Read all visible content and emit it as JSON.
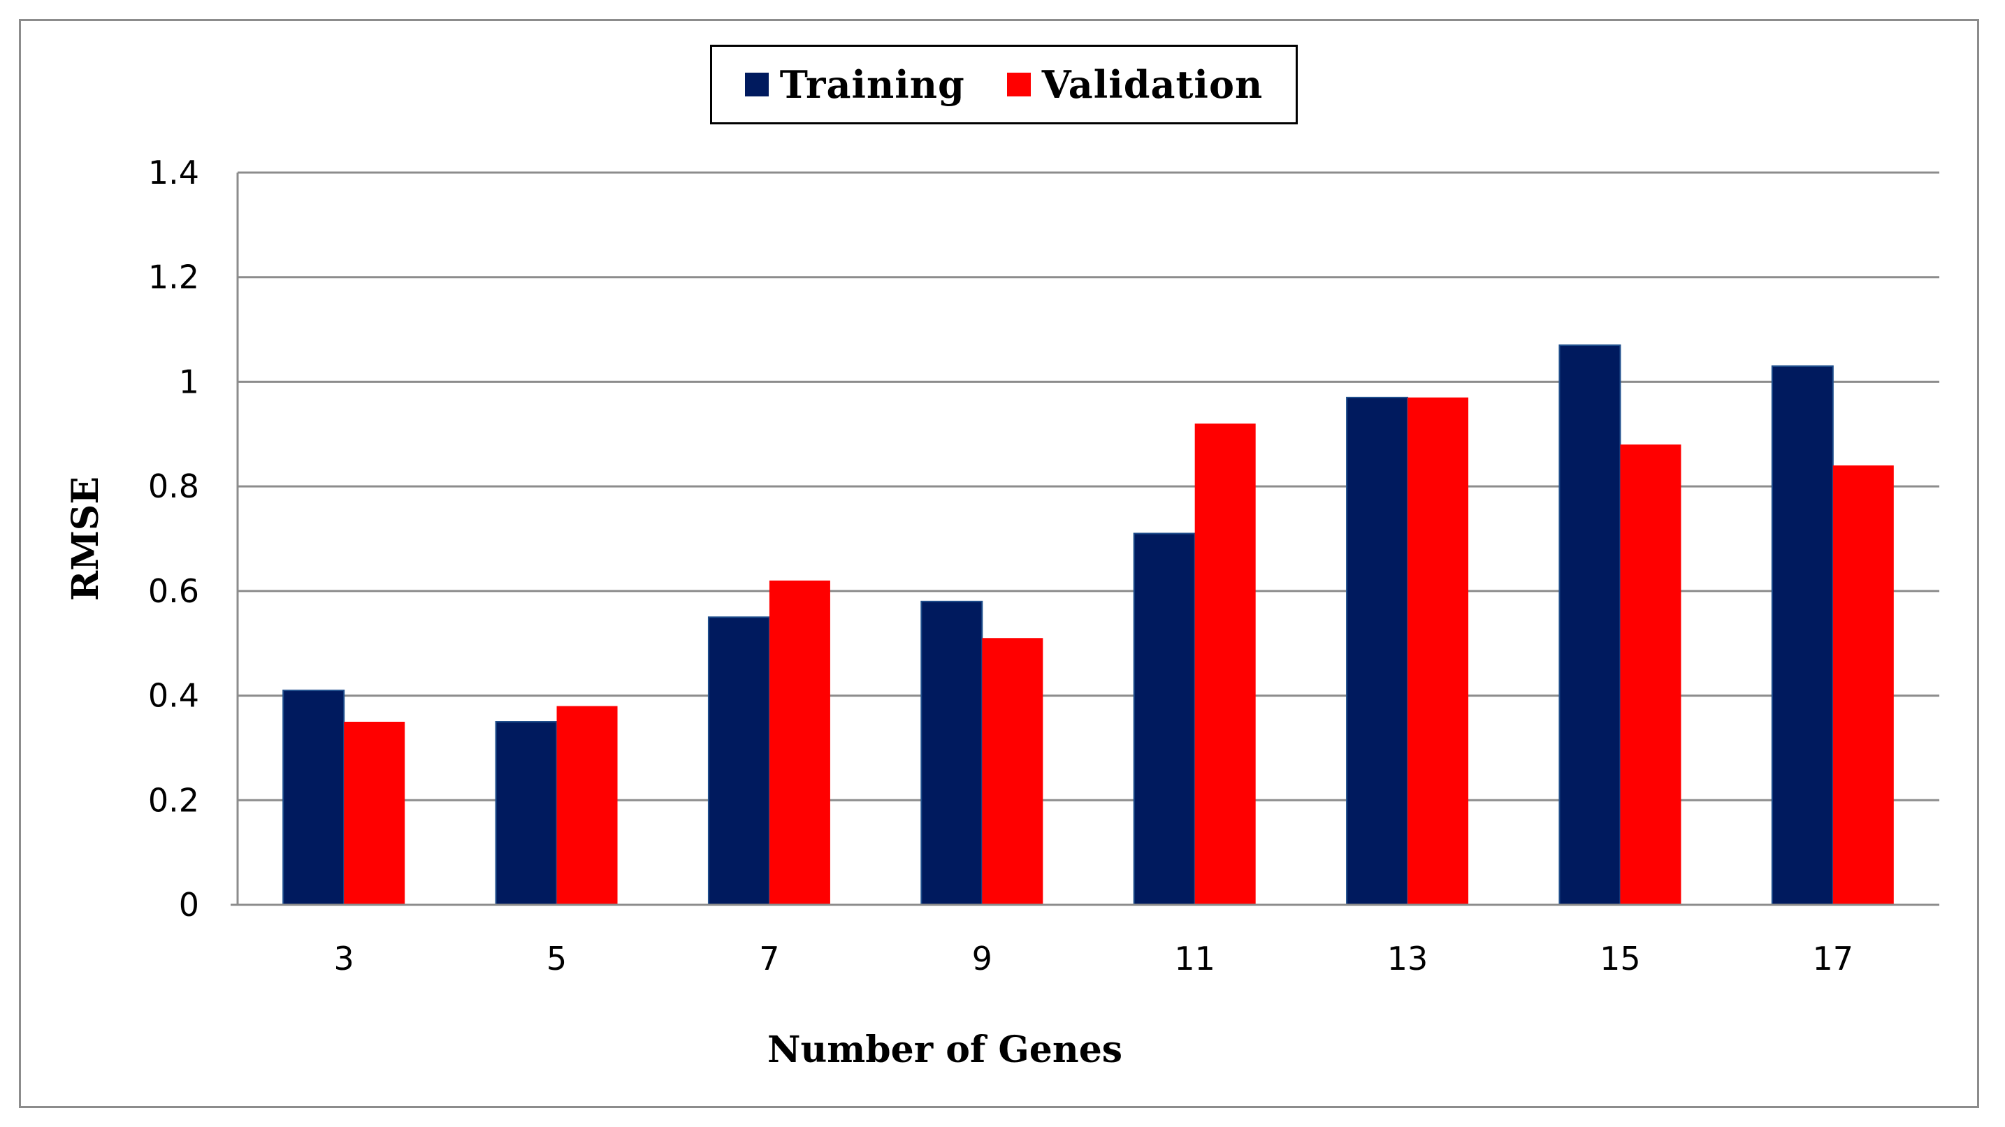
{
  "chart_data": {
    "type": "bar",
    "title": "",
    "xlabel": "Number of Genes",
    "ylabel": "RMSE",
    "categories": [
      "3",
      "5",
      "7",
      "9",
      "11",
      "13",
      "15",
      "17"
    ],
    "series": [
      {
        "name": "Training",
        "color": "#001a5e",
        "values": [
          0.41,
          0.35,
          0.55,
          0.58,
          0.71,
          0.97,
          1.07,
          1.03
        ]
      },
      {
        "name": "Validation",
        "color": "#ff0000",
        "values": [
          0.35,
          0.38,
          0.62,
          0.51,
          0.92,
          0.97,
          0.88,
          0.84
        ]
      }
    ],
    "ylim": [
      0,
      1.4
    ],
    "yticks": [
      "0",
      "0.2",
      "0.4",
      "0.6",
      "0.8",
      "1",
      "1.2",
      "1.4"
    ],
    "grid": true,
    "legend_position": "top-center"
  }
}
